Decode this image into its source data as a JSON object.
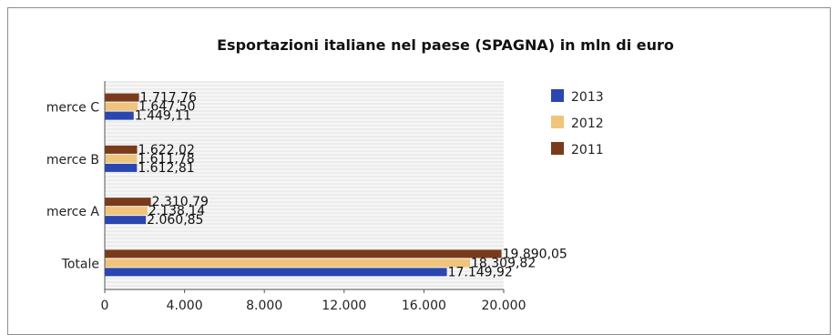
{
  "chart_data": {
    "type": "bar",
    "orientation": "horizontal",
    "title": "Esportazioni italiane nel paese (SPAGNA) in mln di euro",
    "categories": [
      "merce C",
      "merce B",
      "merce A",
      "Totale"
    ],
    "series": [
      {
        "name": "2011",
        "color": "#7a3b1c",
        "values": [
          1717.76,
          1622.02,
          2310.79,
          19890.05
        ],
        "labels": [
          "1.717,76",
          "1.622,02",
          "2.310,79",
          "19.890,05"
        ]
      },
      {
        "name": "2012",
        "color": "#f0c47a",
        "values": [
          1647.5,
          1611.78,
          2138.14,
          18309.82
        ],
        "labels": [
          "1.647,50",
          "1.611,78",
          "2.138,14",
          "18.309,82"
        ]
      },
      {
        "name": "2013",
        "color": "#2a46b0",
        "values": [
          1449.11,
          1612.81,
          2060.85,
          17149.92
        ],
        "labels": [
          "1.449,11",
          "1.612,81",
          "2.060,85",
          "17.149,92"
        ]
      }
    ],
    "legend_order": [
      "2013",
      "2012",
      "2011"
    ],
    "legend_position": "right",
    "xlim": [
      0,
      20000
    ],
    "xticks": [
      0,
      4000,
      8000,
      12000,
      16000,
      20000
    ],
    "xtick_labels": [
      "0",
      "4.000",
      "8.000",
      "12.000",
      "16.000",
      "20.000"
    ],
    "grid": true
  }
}
